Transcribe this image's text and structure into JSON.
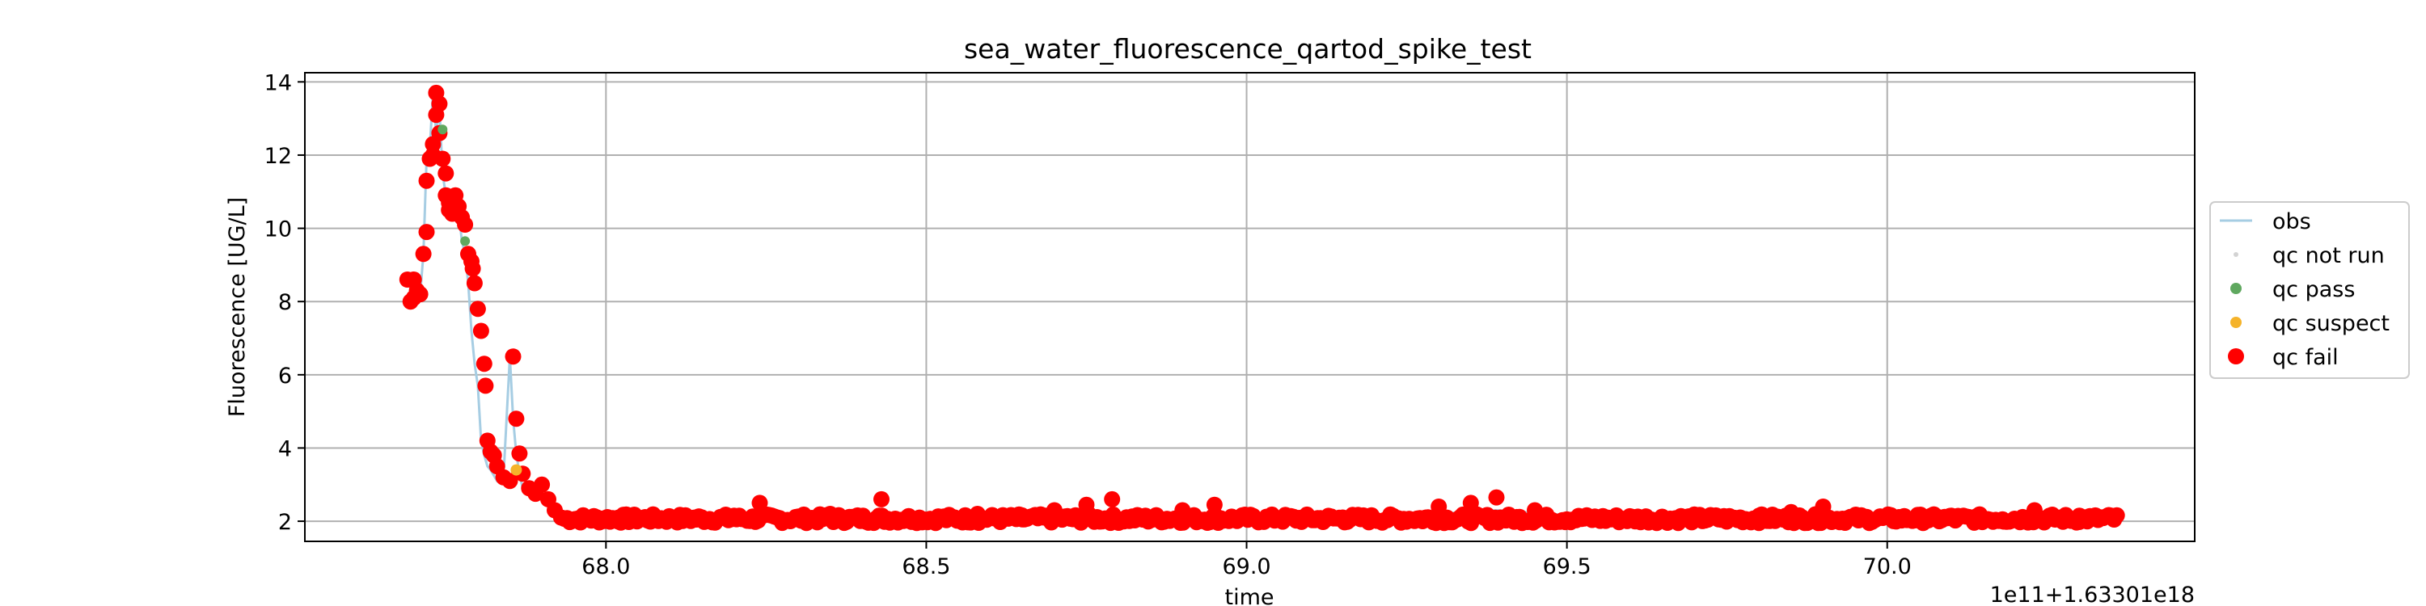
{
  "chart_data": {
    "type": "scatter",
    "title": "sea_water_fluorescence_qartod_spike_test",
    "xlabel": "time",
    "ylabel": "Fluorescence [UG/L]",
    "x_offset_label": "1e11+1.63301e18",
    "xlim": [
      67.53,
      70.48
    ],
    "ylim": [
      1.45,
      14.25
    ],
    "x_ticks": [
      {
        "value": 68.0,
        "label": "68.0"
      },
      {
        "value": 68.5,
        "label": "68.5"
      },
      {
        "value": 69.0,
        "label": "69.0"
      },
      {
        "value": 69.5,
        "label": "69.5"
      },
      {
        "value": 70.0,
        "label": "70.0"
      }
    ],
    "y_ticks": [
      {
        "value": 2,
        "label": "2"
      },
      {
        "value": 4,
        "label": "4"
      },
      {
        "value": 6,
        "label": "6"
      },
      {
        "value": 8,
        "label": "8"
      },
      {
        "value": 10,
        "label": "10"
      },
      {
        "value": 12,
        "label": "12"
      },
      {
        "value": 14,
        "label": "14"
      }
    ],
    "grid": true,
    "legend_position": "right, outside plot",
    "legend": [
      {
        "key": "obs",
        "label": "obs",
        "kind": "line",
        "color": "#a6cde3"
      },
      {
        "key": "not_run",
        "label": "qc not run",
        "kind": "dot",
        "color": "#d3d3d3"
      },
      {
        "key": "pass",
        "label": "qc pass",
        "kind": "dot",
        "color": "#5fa85f"
      },
      {
        "key": "suspect",
        "label": "qc suspect",
        "kind": "dot",
        "color": "#f5b32a"
      },
      {
        "key": "fail",
        "label": "qc fail",
        "kind": "dot",
        "color": "#ff0000"
      }
    ],
    "colors": {
      "obs": "#a6cde3",
      "pass": "#5fa85f",
      "suspect": "#f5b32a",
      "fail": "#ff0000"
    },
    "series": [
      {
        "name": "obs",
        "x": [
          67.69,
          67.7,
          67.705,
          67.71,
          67.715,
          67.72,
          67.725,
          67.73,
          67.735,
          67.74,
          67.745,
          67.75,
          67.755,
          67.76,
          67.765,
          67.77,
          67.775,
          67.78,
          67.785,
          67.79,
          67.795,
          67.8,
          67.805,
          67.81,
          67.815,
          67.82,
          67.83,
          67.84,
          67.85,
          67.855,
          67.86,
          67.865,
          67.87,
          67.88,
          67.89,
          67.9,
          67.91,
          67.92,
          67.95,
          68.0,
          68.2,
          68.43,
          68.6,
          68.79,
          68.95,
          69.2,
          69.39,
          69.6,
          69.9,
          70.2,
          70.35
        ],
        "y": [
          8.6,
          8.1,
          8.3,
          8.2,
          9.3,
          11.9,
          12.2,
          13.7,
          12.6,
          13.3,
          11.5,
          10.9,
          10.6,
          10.4,
          10.9,
          10.5,
          9.65,
          9.3,
          8.5,
          7.2,
          6.3,
          5.7,
          4.2,
          3.8,
          3.5,
          3.4,
          3.1,
          3.2,
          6.5,
          4.8,
          3.85,
          3.3,
          2.9,
          2.8,
          3.0,
          2.6,
          2.4,
          2.1,
          2.05,
          2.1,
          2.05,
          2.2,
          2.1,
          2.2,
          2.2,
          2.1,
          2.3,
          2.05,
          2.1,
          2.05,
          2.15
        ]
      },
      {
        "name": "qc pass",
        "x": [
          67.745,
          67.78
        ],
        "y": [
          12.7,
          9.65
        ]
      },
      {
        "name": "qc suspect",
        "x": [
          67.86
        ],
        "y": [
          3.4
        ]
      },
      {
        "name": "qc fail",
        "x": [
          67.69,
          67.695,
          67.7,
          67.7,
          67.705,
          67.71,
          67.715,
          67.72,
          67.72,
          67.725,
          67.73,
          67.73,
          67.735,
          67.735,
          67.74,
          67.74,
          67.745,
          67.75,
          67.75,
          67.755,
          67.755,
          67.76,
          67.765,
          67.77,
          67.775,
          67.78,
          67.785,
          67.79,
          67.792,
          67.795,
          67.8,
          67.805,
          67.81,
          67.812,
          67.815,
          67.82,
          67.825,
          67.83,
          67.84,
          67.85,
          67.855,
          67.86,
          67.865,
          67.87,
          67.88,
          67.89,
          67.9,
          67.91,
          67.92,
          67.93,
          67.95,
          67.97,
          67.99,
          68.02,
          68.05,
          68.1,
          68.14,
          68.2,
          68.24,
          68.3,
          68.35,
          68.4,
          68.43,
          68.47,
          68.52,
          68.58,
          68.65,
          68.7,
          68.75,
          68.79,
          68.85,
          68.9,
          68.95,
          69.0,
          69.08,
          69.15,
          69.2,
          69.28,
          69.3,
          69.35,
          69.39,
          69.45,
          69.5,
          69.58,
          69.65,
          69.72,
          69.8,
          69.85,
          69.9,
          69.97,
          70.05,
          70.1,
          70.18,
          70.23,
          70.3,
          70.35
        ],
        "y": [
          8.6,
          8.0,
          8.1,
          8.6,
          8.3,
          8.2,
          9.3,
          9.9,
          11.3,
          11.9,
          12.0,
          12.3,
          13.1,
          13.7,
          12.6,
          13.4,
          11.9,
          11.5,
          10.9,
          10.7,
          10.5,
          10.4,
          10.9,
          10.6,
          10.3,
          10.1,
          9.3,
          9.1,
          8.9,
          8.5,
          7.8,
          7.2,
          6.3,
          5.7,
          4.2,
          3.9,
          3.8,
          3.5,
          3.2,
          3.1,
          6.5,
          4.8,
          3.85,
          3.3,
          2.9,
          2.75,
          3.0,
          2.6,
          2.3,
          2.1,
          2.05,
          2.1,
          2.05,
          2.1,
          2.1,
          2.05,
          2.1,
          2.15,
          2.5,
          2.05,
          2.2,
          2.1,
          2.6,
          2.1,
          2.05,
          2.2,
          2.05,
          2.3,
          2.45,
          2.6,
          2.1,
          2.3,
          2.45,
          2.1,
          2.05,
          2.1,
          2.05,
          2.1,
          2.4,
          2.5,
          2.65,
          2.3,
          2.05,
          2.1,
          2.05,
          2.1,
          2.15,
          2.25,
          2.4,
          2.05,
          2.1,
          2.15,
          2.05,
          2.3,
          2.15,
          2.15
        ]
      }
    ],
    "dense_band": {
      "name": "qc fail",
      "x_start": 67.935,
      "x_end": 70.36,
      "y_center": 2.07,
      "y_jitter": 0.12
    }
  }
}
